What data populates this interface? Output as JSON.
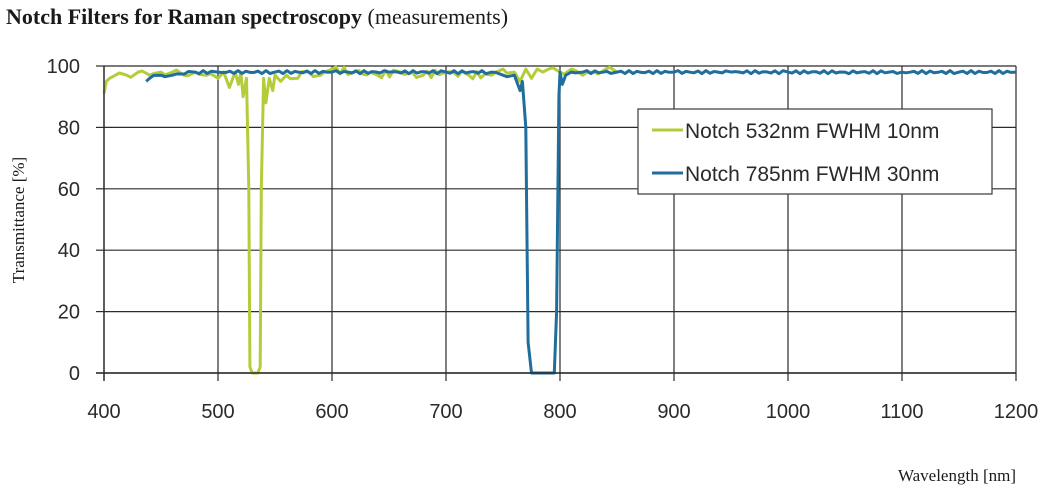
{
  "title": {
    "bold": "Notch Filters for Raman spectroscopy",
    "normal": "(measurements)"
  },
  "chart_data": {
    "type": "line",
    "title": "Notch Filters for Raman spectroscopy (measurements)",
    "xlabel": "Wavelength [nm]",
    "ylabel": "Transmittance [%]",
    "xlim": [
      400,
      1200
    ],
    "ylim": [
      0,
      100
    ],
    "xticks": [
      400,
      500,
      600,
      700,
      800,
      900,
      1000,
      1100,
      1200
    ],
    "yticks": [
      0,
      20,
      40,
      60,
      80,
      100
    ],
    "grid": true,
    "legend_position": "upper right (inside)",
    "series": [
      {
        "name": "Notch 532nm FWHM 10nm",
        "color": "#b3cd3a",
        "x": [
          400,
          402,
          405,
          410,
          420,
          430,
          440,
          450,
          460,
          470,
          480,
          490,
          500,
          505,
          510,
          515,
          518,
          520,
          522,
          525,
          527,
          528,
          530,
          532,
          535,
          537,
          538,
          540,
          542,
          545,
          548,
          550,
          555,
          560,
          570,
          580,
          590,
          600,
          620,
          640,
          660,
          680,
          700,
          720,
          740,
          750,
          760,
          765,
          770,
          775,
          780,
          785,
          790,
          800,
          810,
          820,
          830,
          840,
          850
        ],
        "y": [
          91,
          95,
          96,
          97,
          97,
          98,
          97,
          98,
          98,
          97,
          98,
          97,
          96,
          98,
          93,
          98,
          94,
          98,
          90,
          96,
          60,
          2,
          0,
          0,
          0,
          2,
          60,
          96,
          88,
          96,
          92,
          97,
          95,
          97,
          96,
          98,
          97,
          99,
          98,
          97,
          98,
          97,
          98,
          97,
          97,
          99,
          98,
          95,
          99,
          96,
          99,
          98,
          99,
          98,
          99,
          97,
          98,
          99,
          98
        ]
      },
      {
        "name": "Notch 785nm FWHM 30nm",
        "color": "#1f6e9c",
        "x": [
          437,
          440,
          450,
          460,
          480,
          500,
          550,
          600,
          650,
          700,
          740,
          750,
          760,
          765,
          767,
          770,
          772,
          775,
          780,
          790,
          795,
          797,
          799,
          800,
          802,
          805,
          810,
          820,
          850,
          900,
          950,
          1000,
          1050,
          1100,
          1150,
          1200
        ],
        "y": [
          95,
          96,
          97,
          97,
          98,
          98,
          98,
          98,
          98,
          98,
          98,
          97,
          97,
          92,
          95,
          80,
          10,
          0,
          0,
          0,
          0,
          20,
          90,
          98,
          94,
          97,
          98,
          98,
          98,
          98,
          98,
          98,
          98,
          98,
          98,
          98
        ]
      }
    ]
  },
  "legend": {
    "items": [
      {
        "label": "Notch 532nm FWHM 10nm",
        "color": "#b3cd3a"
      },
      {
        "label": "Notch 785nm FWHM 30nm",
        "color": "#1f6e9c"
      }
    ]
  }
}
